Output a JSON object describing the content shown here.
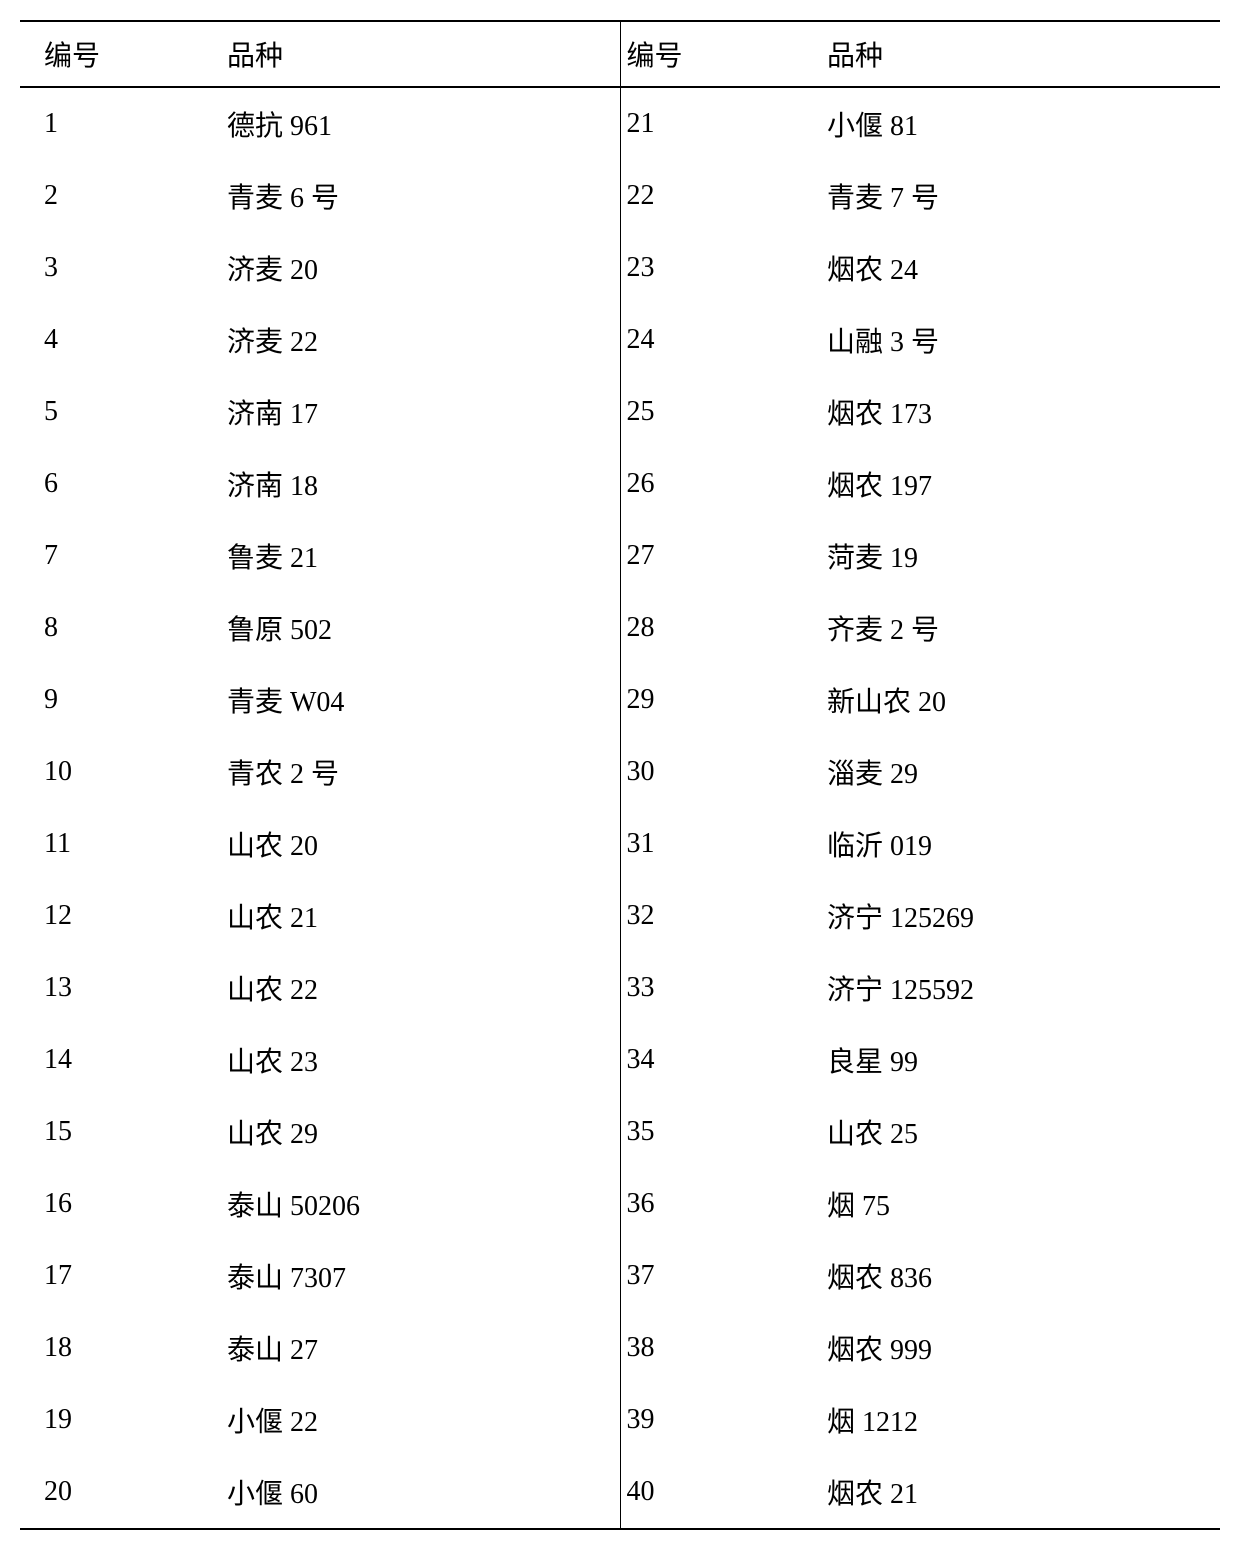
{
  "table": {
    "headers": {
      "col1": "编号",
      "col2": "品种",
      "col3": "编号",
      "col4": "品种"
    },
    "rows": [
      {
        "c1": "1",
        "c2": "德抗 961",
        "c3": "21",
        "c4": "小偃 81"
      },
      {
        "c1": "2",
        "c2": "青麦 6 号",
        "c3": "22",
        "c4": "青麦 7 号"
      },
      {
        "c1": "3",
        "c2": "济麦 20",
        "c3": "23",
        "c4": "烟农 24"
      },
      {
        "c1": "4",
        "c2": "济麦 22",
        "c3": "24",
        "c4": "山融 3 号"
      },
      {
        "c1": "5",
        "c2": "济南 17",
        "c3": "25",
        "c4": "烟农 173"
      },
      {
        "c1": "6",
        "c2": "济南 18",
        "c3": "26",
        "c4": "烟农 197"
      },
      {
        "c1": "7",
        "c2": "鲁麦 21",
        "c3": "27",
        "c4": "菏麦 19"
      },
      {
        "c1": "8",
        "c2": "鲁原 502",
        "c3": "28",
        "c4": "齐麦 2 号"
      },
      {
        "c1": "9",
        "c2": "青麦 W04",
        "c3": "29",
        "c4": "新山农 20"
      },
      {
        "c1": "10",
        "c2": "青农 2 号",
        "c3": "30",
        "c4": "淄麦 29"
      },
      {
        "c1": "11",
        "c2": "山农 20",
        "c3": "31",
        "c4": "临沂 019"
      },
      {
        "c1": "12",
        "c2": "山农 21",
        "c3": "32",
        "c4": "济宁 125269"
      },
      {
        "c1": "13",
        "c2": "山农 22",
        "c3": "33",
        "c4": "济宁 125592"
      },
      {
        "c1": "14",
        "c2": "山农 23",
        "c3": "34",
        "c4": "良星 99"
      },
      {
        "c1": "15",
        "c2": "山农 29",
        "c3": "35",
        "c4": "山农 25"
      },
      {
        "c1": "16",
        "c2": "泰山 50206",
        "c3": "36",
        "c4": "烟 75"
      },
      {
        "c1": "17",
        "c2": "泰山 7307",
        "c3": "37",
        "c4": "烟农 836"
      },
      {
        "c1": "18",
        "c2": "泰山 27",
        "c3": "38",
        "c4": "烟农 999"
      },
      {
        "c1": "19",
        "c2": "小偃 22",
        "c3": "39",
        "c4": "烟 1212"
      },
      {
        "c1": "20",
        "c2": "小偃 60",
        "c3": "40",
        "c4": "烟农 21"
      }
    ],
    "styling": {
      "font_size": 28,
      "font_family": "SimSun",
      "text_color": "#000000",
      "background_color": "#ffffff",
      "border_color": "#000000",
      "header_border_width": 2,
      "divider_border_width": 1,
      "row_padding_vertical": 16,
      "col_widths_percent": [
        13,
        27,
        13,
        27
      ]
    }
  }
}
